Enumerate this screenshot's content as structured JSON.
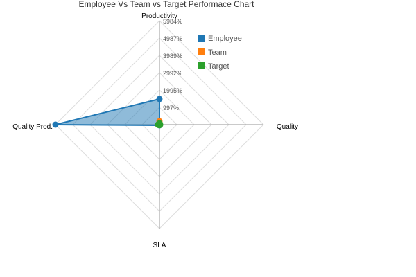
{
  "chart_data": {
    "type": "radar",
    "title": "Employee Vs Team vs Target Performace Chart",
    "axes": [
      "Productivity",
      "Quality",
      "SLA",
      "Quality Prod."
    ],
    "ticks": [
      "997%",
      "1995%",
      "2992%",
      "3989%",
      "4987%",
      "5984%"
    ],
    "max": 5984,
    "series": [
      {
        "name": "Employee",
        "color": "#1f77b4",
        "values": [
          1480,
          0,
          40,
          5984
        ]
      },
      {
        "name": "Team",
        "color": "#ff7f0e",
        "values": [
          200,
          0,
          20,
          60
        ]
      },
      {
        "name": "Target",
        "color": "#2ca02c",
        "values": [
          60,
          20,
          10,
          60
        ]
      }
    ],
    "legend_position": "top-right",
    "grid": true
  }
}
